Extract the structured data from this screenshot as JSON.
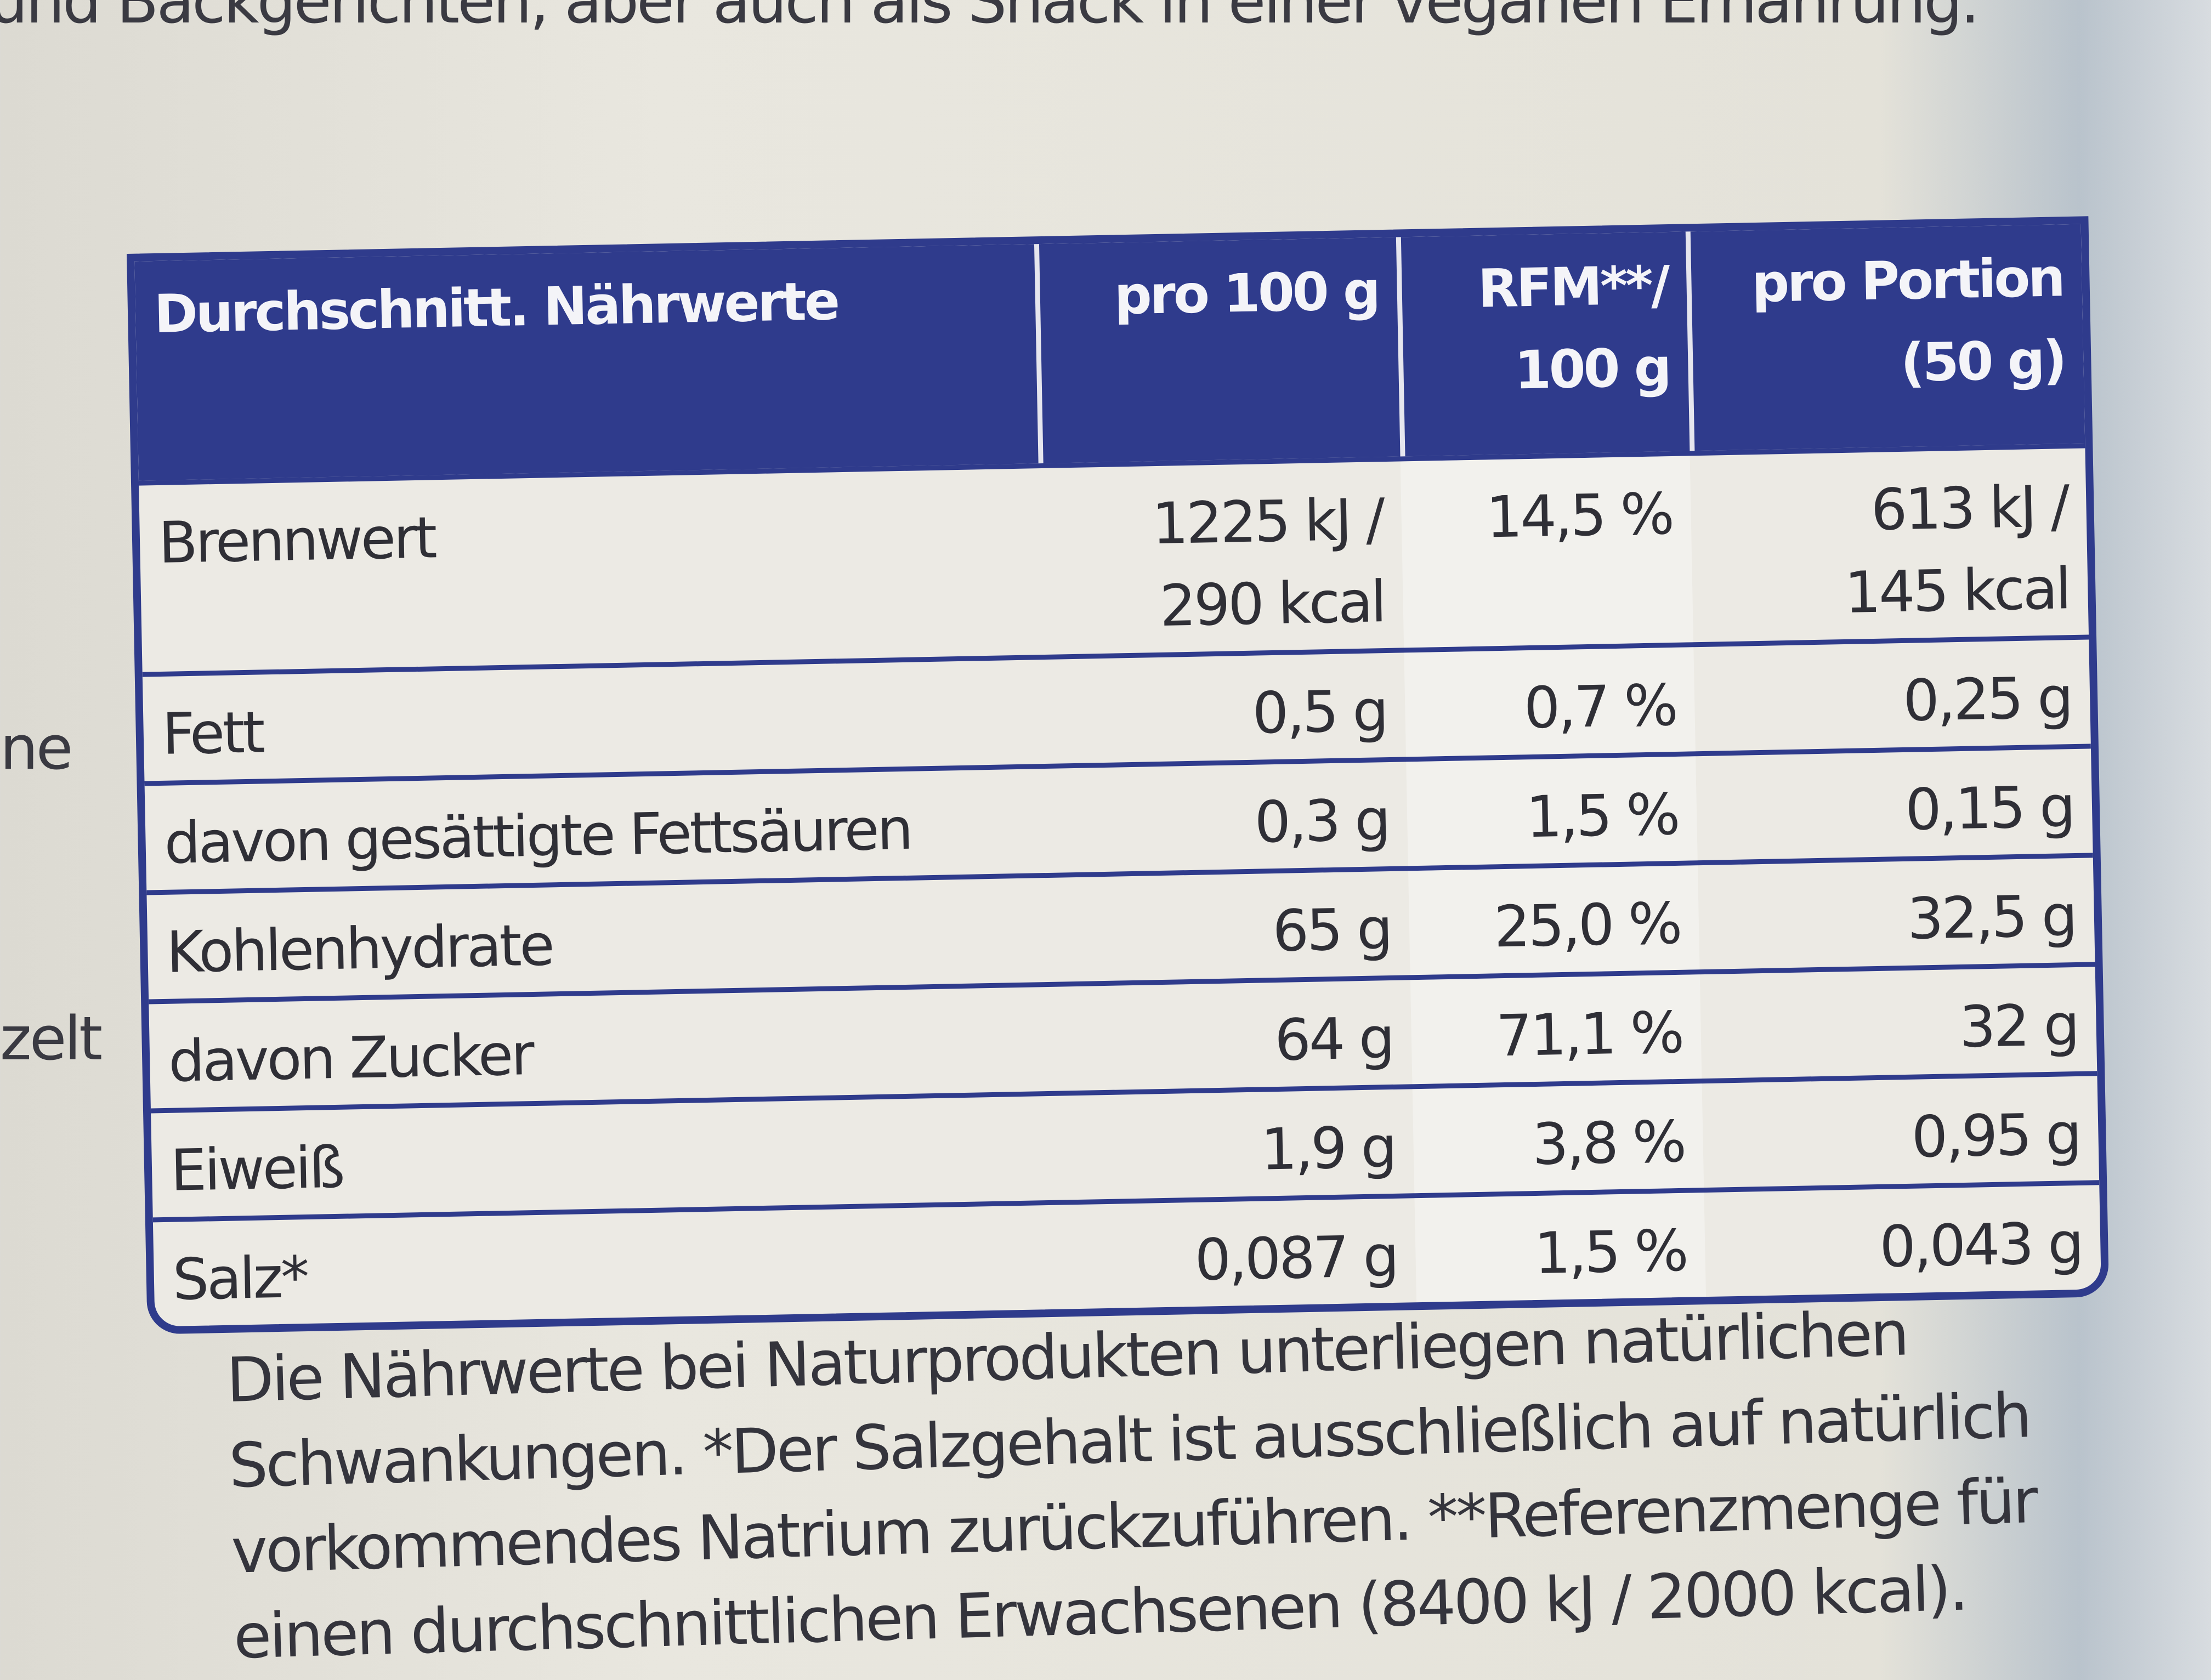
{
  "intro": "und Backgerichten, aber auch als Snack in einer veganen Ernährung.",
  "side_fragments": [
    "ne",
    "zelt"
  ],
  "table": {
    "header": [
      [
        "Durchschnitt. Nährwerte"
      ],
      [
        "pro 100 g"
      ],
      [
        "RFM**/",
        "100 g"
      ],
      [
        "pro Portion",
        "(50 g)"
      ]
    ],
    "rows": [
      [
        [
          "Brennwert"
        ],
        [
          "1225 kJ /",
          "290 kcal"
        ],
        [
          "14,5 %"
        ],
        [
          "613 kJ /",
          "145 kcal"
        ]
      ],
      [
        [
          "Fett"
        ],
        [
          "0,5 g"
        ],
        [
          "0,7 %"
        ],
        [
          "0,25 g"
        ]
      ],
      [
        [
          "davon gesättigte Fettsäuren"
        ],
        [
          "0,3 g"
        ],
        [
          "1,5 %"
        ],
        [
          "0,15 g"
        ]
      ],
      [
        [
          "Kohlenhydrate"
        ],
        [
          "65 g"
        ],
        [
          "25,0 %"
        ],
        [
          "32,5 g"
        ]
      ],
      [
        [
          "davon Zucker"
        ],
        [
          "64 g"
        ],
        [
          "71,1 %"
        ],
        [
          "32 g"
        ]
      ],
      [
        [
          "Eiweiß"
        ],
        [
          "1,9 g"
        ],
        [
          "3,8 %"
        ],
        [
          "0,95 g"
        ]
      ],
      [
        [
          "Salz*"
        ],
        [
          "0,087 g"
        ],
        [
          "1,5 %"
        ],
        [
          "0,043 g"
        ]
      ]
    ]
  },
  "footnote": [
    "Die Nährwerte bei Naturprodukten unterliegen natürlichen",
    "Schwankungen. *Der Salzgehalt ist ausschließlich auf natürlich",
    "vorkommendes Natrium zurückzuführen. **Referenzmenge für",
    "einen durchschnittlichen Erwachsenen (8400 kJ / 2000 kcal)."
  ]
}
